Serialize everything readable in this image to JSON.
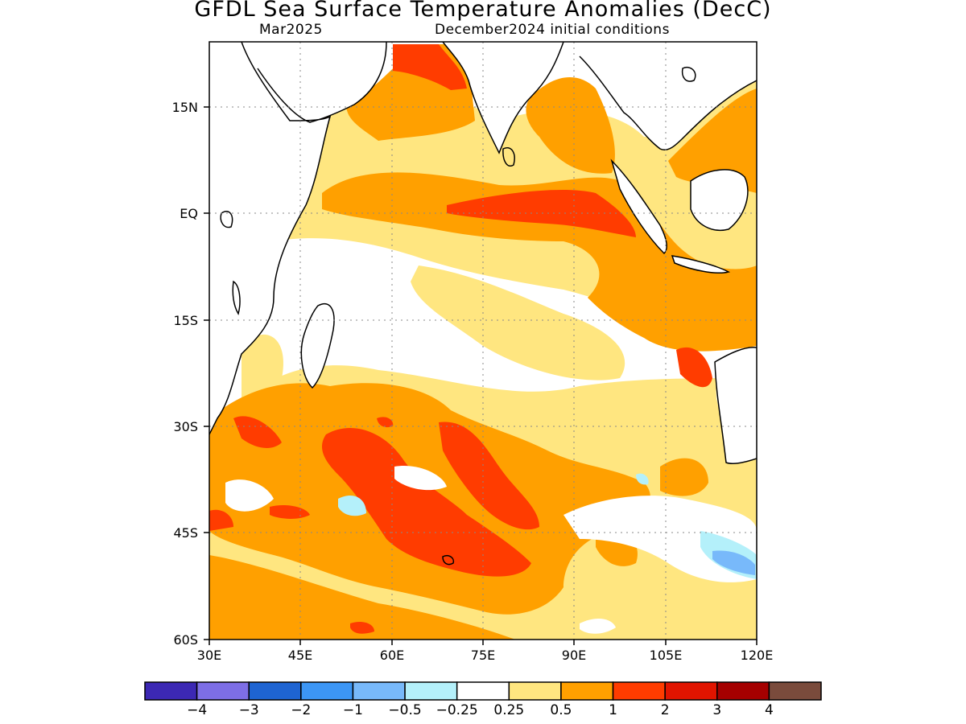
{
  "title": "GFDL Sea Surface Temperature Anomalies (DecC)",
  "subtitle_left": "Mar2025",
  "subtitle_right": "December2024 initial conditions",
  "map": {
    "lon_range": [
      30,
      120
    ],
    "lat_range": [
      -60,
      24
    ],
    "x_ticks": [
      "30E",
      "45E",
      "60E",
      "75E",
      "90E",
      "105E",
      "120E"
    ],
    "x_tick_values": [
      30,
      45,
      60,
      75,
      90,
      105,
      120
    ],
    "y_ticks": [
      "15N",
      "EQ",
      "15S",
      "30S",
      "45S",
      "60S"
    ],
    "y_tick_values": [
      15,
      0,
      -15,
      -30,
      -45,
      -60
    ],
    "grid": "dotted",
    "field_colors": {
      "0.25-0.5": "#ffe680",
      "0.5-1": "#ffa000",
      "1-2": "#ff3c00",
      "2-3": "#e11400",
      "-0.5--0.25": "#b4f0fa",
      "-1--0.5": "#78b9fa",
      "land_coast": "#000000",
      "ocean_neutral": "#ffffff"
    }
  },
  "colorbar": {
    "colors": [
      "#3c28b4",
      "#7d6ee6",
      "#1e64d2",
      "#3c96f5",
      "#78b9fa",
      "#b4f0fa",
      "#ffffff",
      "#ffe680",
      "#ffa000",
      "#ff3c00",
      "#e11400",
      "#a50000",
      "#7a4b3c"
    ],
    "labels": [
      "−4",
      "−3",
      "−2",
      "−1",
      "−0.5",
      "−0.25",
      "0.25",
      "0.5",
      "1",
      "2",
      "3",
      "4"
    ]
  }
}
